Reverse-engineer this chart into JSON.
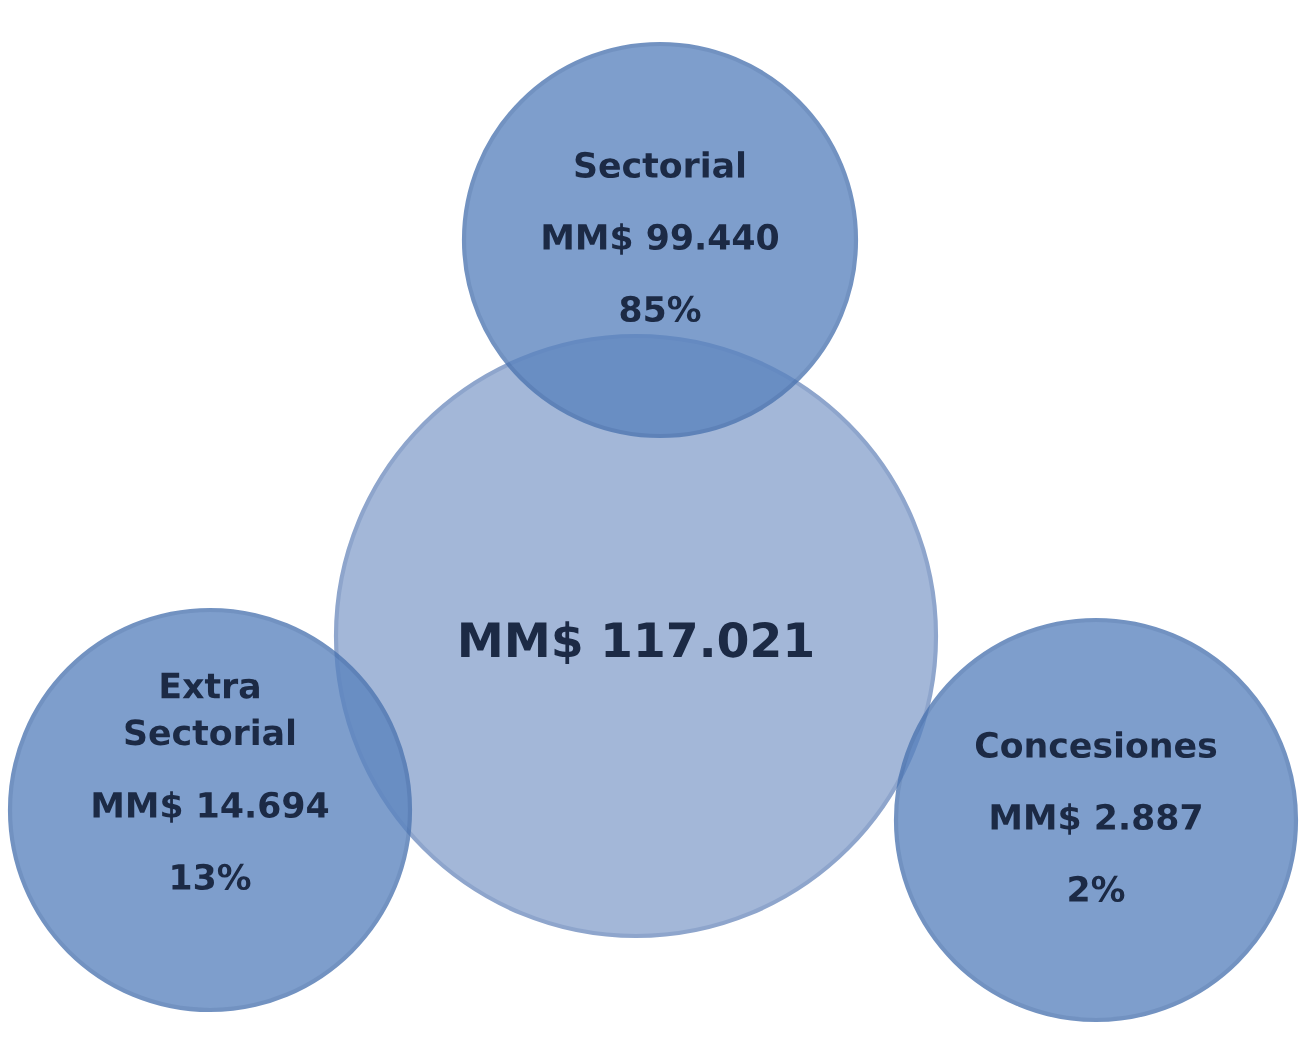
{
  "chart_data": {
    "type": "other",
    "categories": [
      "Sectorial",
      "Extra\nSectorial",
      "Concesiones"
    ],
    "series": [
      {
        "color": "#5a83be",
        "values": [
          99440,
          14694,
          2887
        ],
        "value_labels": [
          "MM$ 99.440",
          "MM$ 14.694",
          "MM$ 2.887"
        ]
      },
      {
        "values": [
          85,
          13,
          2
        ],
        "value_labels": [
          "85%",
          "13%",
          "2%"
        ]
      }
    ],
    "annotations": [
      "MM$ 117.021"
    ]
  }
}
